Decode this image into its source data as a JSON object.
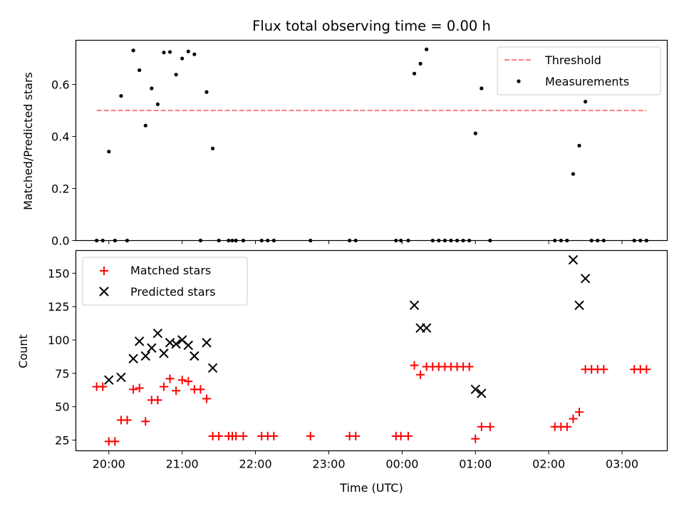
{
  "chart_data": [
    {
      "type": "scatter",
      "title": "Flux total observing time = 0.00 h",
      "xlabel": "",
      "ylabel": "Matched/Predicted stars",
      "xlim": [
        "19:33",
        "03:37"
      ],
      "ylim": [
        0,
        0.77
      ],
      "yticks": [
        0.0,
        0.2,
        0.4,
        0.6
      ],
      "ytick_labels": [
        "0.0",
        "0.2",
        "0.4",
        "0.6"
      ],
      "xticks": [
        "20:00",
        "21:00",
        "22:00",
        "23:00",
        "00:00",
        "01:00",
        "02:00",
        "03:00"
      ],
      "legend_position": "upper right",
      "threshold": {
        "name": "Threshold",
        "value": 0.5,
        "x_range": [
          "19:50",
          "03:20"
        ],
        "color": "#ff7f7f",
        "style": "dashed"
      },
      "series": [
        {
          "name": "Measurements",
          "marker": "dot",
          "color": "#000000",
          "points": [
            [
              "19:50",
              0.0
            ],
            [
              "19:55",
              0.0
            ],
            [
              "20:00",
              0.342
            ],
            [
              "20:05",
              0.0
            ],
            [
              "20:10",
              0.556
            ],
            [
              "20:15",
              0.0
            ],
            [
              "20:20",
              0.731
            ],
            [
              "20:25",
              0.655
            ],
            [
              "20:30",
              0.442
            ],
            [
              "20:35",
              0.585
            ],
            [
              "20:40",
              0.524
            ],
            [
              "20:45",
              0.723
            ],
            [
              "20:50",
              0.725
            ],
            [
              "20:55",
              0.638
            ],
            [
              "21:00",
              0.7
            ],
            [
              "21:05",
              0.727
            ],
            [
              "21:10",
              0.716
            ],
            [
              "21:15",
              0.0
            ],
            [
              "21:20",
              0.571
            ],
            [
              "21:25",
              0.354
            ],
            [
              "21:30",
              0.0
            ],
            [
              "21:38",
              0.0
            ],
            [
              "21:41",
              0.0
            ],
            [
              "21:44",
              0.0
            ],
            [
              "21:50",
              0.0
            ],
            [
              "22:05",
              0.0
            ],
            [
              "22:10",
              0.0
            ],
            [
              "22:15",
              0.0
            ],
            [
              "22:45",
              0.0
            ],
            [
              "23:17",
              0.0
            ],
            [
              "23:22",
              0.0
            ],
            [
              "23:55",
              0.0
            ],
            [
              "23:59",
              0.0
            ],
            [
              "00:05",
              0.0
            ],
            [
              "00:10",
              0.642
            ],
            [
              "00:15",
              0.68
            ],
            [
              "00:20",
              0.735
            ],
            [
              "00:25",
              0.0
            ],
            [
              "00:30",
              0.0
            ],
            [
              "00:35",
              0.0
            ],
            [
              "00:40",
              0.0
            ],
            [
              "00:45",
              0.0
            ],
            [
              "00:50",
              0.0
            ],
            [
              "00:55",
              0.0
            ],
            [
              "01:00",
              0.412
            ],
            [
              "01:05",
              0.585
            ],
            [
              "01:12",
              0.0
            ],
            [
              "02:05",
              0.0
            ],
            [
              "02:10",
              0.0
            ],
            [
              "02:15",
              0.0
            ],
            [
              "02:20",
              0.256
            ],
            [
              "02:25",
              0.365
            ],
            [
              "02:30",
              0.534
            ],
            [
              "02:35",
              0.0
            ],
            [
              "02:40",
              0.0
            ],
            [
              "02:45",
              0.0
            ],
            [
              "03:10",
              0.0
            ],
            [
              "03:15",
              0.0
            ],
            [
              "03:20",
              0.0
            ]
          ]
        }
      ]
    },
    {
      "type": "scatter",
      "title": "",
      "xlabel": "Time (UTC)",
      "ylabel": "Count",
      "xlim": [
        "19:33",
        "03:37"
      ],
      "ylim": [
        17,
        167
      ],
      "yticks": [
        25,
        50,
        75,
        100,
        125,
        150
      ],
      "ytick_labels": [
        "25",
        "50",
        "75",
        "100",
        "125",
        "150"
      ],
      "xticks": [
        "20:00",
        "21:00",
        "22:00",
        "23:00",
        "00:00",
        "01:00",
        "02:00",
        "03:00"
      ],
      "xtick_labels": [
        "20:00",
        "21:00",
        "22:00",
        "23:00",
        "00:00",
        "01:00",
        "02:00",
        "03:00"
      ],
      "legend_position": "upper left",
      "series": [
        {
          "name": "Matched stars",
          "marker": "plus",
          "color": "#ff0000",
          "points": [
            [
              "19:50",
              65
            ],
            [
              "19:55",
              65
            ],
            [
              "20:00",
              24
            ],
            [
              "20:05",
              24
            ],
            [
              "20:10",
              40
            ],
            [
              "20:15",
              40
            ],
            [
              "20:20",
              63
            ],
            [
              "20:25",
              64
            ],
            [
              "20:30",
              39
            ],
            [
              "20:35",
              55
            ],
            [
              "20:40",
              55
            ],
            [
              "20:45",
              65
            ],
            [
              "20:50",
              71
            ],
            [
              "20:55",
              62
            ],
            [
              "21:00",
              70
            ],
            [
              "21:05",
              69
            ],
            [
              "21:10",
              63
            ],
            [
              "21:15",
              63
            ],
            [
              "21:20",
              56
            ],
            [
              "21:25",
              28
            ],
            [
              "21:30",
              28
            ],
            [
              "21:38",
              28
            ],
            [
              "21:41",
              28
            ],
            [
              "21:44",
              28
            ],
            [
              "21:50",
              28
            ],
            [
              "22:05",
              28
            ],
            [
              "22:10",
              28
            ],
            [
              "22:15",
              28
            ],
            [
              "22:45",
              28
            ],
            [
              "23:17",
              28
            ],
            [
              "23:22",
              28
            ],
            [
              "23:55",
              28
            ],
            [
              "23:59",
              28
            ],
            [
              "00:05",
              28
            ],
            [
              "00:10",
              81
            ],
            [
              "00:15",
              74
            ],
            [
              "00:20",
              80
            ],
            [
              "00:25",
              80
            ],
            [
              "00:30",
              80
            ],
            [
              "00:35",
              80
            ],
            [
              "00:40",
              80
            ],
            [
              "00:45",
              80
            ],
            [
              "00:50",
              80
            ],
            [
              "00:55",
              80
            ],
            [
              "01:00",
              26
            ],
            [
              "01:05",
              35
            ],
            [
              "01:12",
              35
            ],
            [
              "02:05",
              35
            ],
            [
              "02:10",
              35
            ],
            [
              "02:15",
              35
            ],
            [
              "02:20",
              41
            ],
            [
              "02:25",
              46
            ],
            [
              "02:30",
              78
            ],
            [
              "02:35",
              78
            ],
            [
              "02:40",
              78
            ],
            [
              "02:45",
              78
            ],
            [
              "03:10",
              78
            ],
            [
              "03:15",
              78
            ],
            [
              "03:20",
              78
            ]
          ]
        },
        {
          "name": "Predicted stars",
          "marker": "x",
          "color": "#000000",
          "points": [
            [
              "20:00",
              70
            ],
            [
              "20:10",
              72
            ],
            [
              "20:20",
              86
            ],
            [
              "20:25",
              99
            ],
            [
              "20:30",
              88
            ],
            [
              "20:35",
              94
            ],
            [
              "20:40",
              105
            ],
            [
              "20:45",
              90
            ],
            [
              "20:50",
              98
            ],
            [
              "20:55",
              97
            ],
            [
              "21:00",
              100
            ],
            [
              "21:05",
              96
            ],
            [
              "21:10",
              88
            ],
            [
              "21:20",
              98
            ],
            [
              "21:25",
              79
            ],
            [
              "00:10",
              126
            ],
            [
              "00:15",
              109
            ],
            [
              "00:20",
              109
            ],
            [
              "01:00",
              63
            ],
            [
              "01:05",
              60
            ],
            [
              "02:20",
              160
            ],
            [
              "02:25",
              126
            ],
            [
              "02:30",
              146
            ]
          ]
        }
      ]
    }
  ]
}
